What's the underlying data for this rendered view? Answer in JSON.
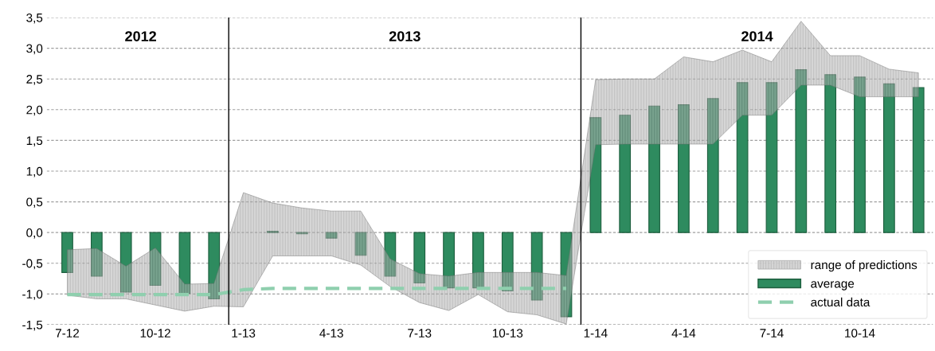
{
  "chart_data": {
    "type": "bar",
    "categories": [
      "7-12",
      null,
      null,
      "10-12",
      null,
      null,
      "1-13",
      null,
      null,
      "4-13",
      null,
      null,
      "7-13",
      null,
      null,
      "10-13",
      null,
      null,
      "1-14",
      null,
      null,
      "4-14",
      null,
      null,
      "7-14",
      null,
      null,
      "10-14",
      null,
      null
    ],
    "series": [
      {
        "name": "range of predictions",
        "type": "line",
        "color": "#b4b4b4",
        "values": [
          null,
          null,
          null,
          null,
          null,
          null,
          null,
          null,
          null,
          null,
          null,
          null,
          null,
          null,
          null,
          null,
          null,
          null,
          null,
          null,
          null,
          null,
          null,
          null,
          null,
          null,
          null,
          null,
          null,
          null
        ],
        "lower": [
          -1.02,
          -1.08,
          -1.08,
          -1.18,
          -1.28,
          -1.2,
          -1.21,
          -0.38,
          -0.38,
          -0.38,
          -0.53,
          -0.88,
          -1.14,
          -1.27,
          -1.01,
          -1.29,
          -1.34,
          -1.49,
          1.43,
          1.44,
          1.44,
          1.44,
          1.44,
          1.91,
          1.91,
          2.4,
          2.4,
          2.21,
          2.21,
          2.21
        ],
        "upper": [
          -0.28,
          -0.26,
          -0.55,
          -0.25,
          -0.84,
          -0.83,
          0.65,
          0.48,
          0.4,
          0.35,
          0.35,
          -0.43,
          -0.67,
          -0.71,
          -0.65,
          -0.65,
          -0.65,
          -0.7,
          2.49,
          2.5,
          2.5,
          2.86,
          2.78,
          2.97,
          2.78,
          3.44,
          2.88,
          2.88,
          2.66,
          2.6
        ]
      },
      {
        "name": "average",
        "color": "#2e8b5f",
        "values": [
          -0.65,
          -0.71,
          -0.97,
          -0.86,
          -0.99,
          -1.08,
          null,
          0.02,
          -0.02,
          -0.09,
          -0.37,
          -0.71,
          -0.82,
          -0.9,
          -0.9,
          -0.95,
          -1.1,
          -1.37,
          1.87,
          1.91,
          2.06,
          2.08,
          2.18,
          2.44,
          2.44,
          2.65,
          2.57,
          2.53,
          2.42,
          2.36
        ]
      },
      {
        "name": "actual data",
        "type": "line",
        "color": "#8fcfae",
        "line_style": "dashed",
        "values": [
          -1.01,
          -1.01,
          -1.01,
          -1.01,
          -1.01,
          -1.01,
          -0.93,
          -0.91,
          -0.91,
          -0.91,
          -0.91,
          -0.91,
          -0.91,
          -0.91,
          -0.91,
          -0.91,
          -0.91,
          -0.91,
          null,
          null,
          null,
          null,
          null,
          null,
          null,
          null,
          null,
          null,
          null,
          null
        ]
      }
    ],
    "ylim": [
      -1.5,
      3.5
    ],
    "yticks": [
      {
        "value": -1.5,
        "label": "-1,5"
      },
      {
        "value": -1.0,
        "label": "-1,0"
      },
      {
        "value": -0.5,
        "label": "-0,5"
      },
      {
        "value": 0,
        "label": "0,0"
      },
      {
        "value": 0.5,
        "label": "0,5"
      },
      {
        "value": 1.0,
        "label": "1,0"
      },
      {
        "value": 1.5,
        "label": "1,5"
      },
      {
        "value": 2.0,
        "label": "2,0"
      },
      {
        "value": 2.5,
        "label": "2,5"
      },
      {
        "value": 3.0,
        "label": "3,0"
      },
      {
        "value": 3.5,
        "label": "3,5"
      }
    ],
    "annotations": [
      "2012",
      "2013",
      "2014"
    ],
    "grid": "y",
    "legend": "bottom right"
  }
}
